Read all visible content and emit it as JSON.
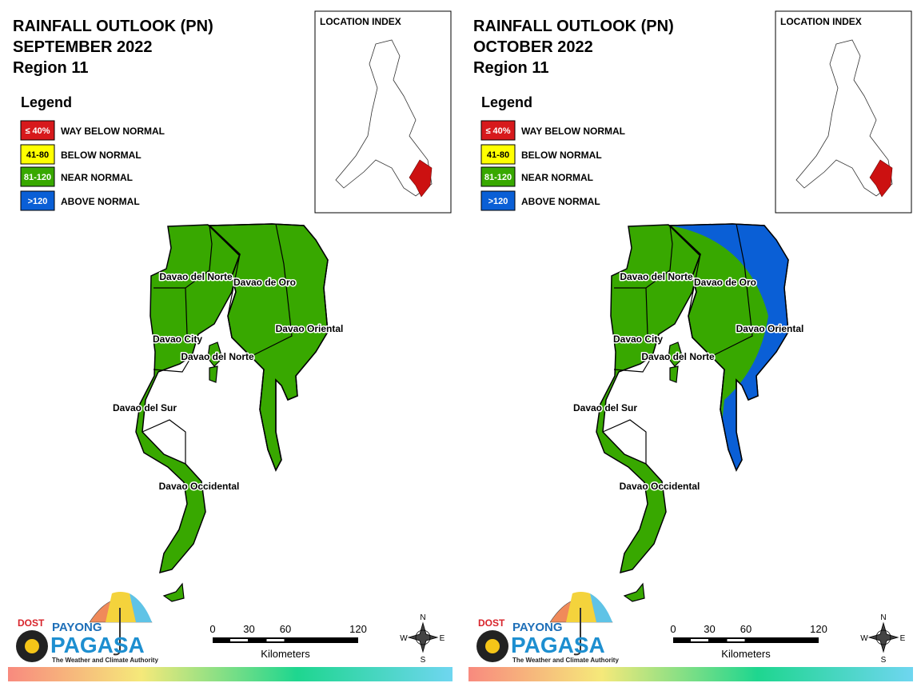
{
  "panels": [
    {
      "title": [
        "RAINFALL OUTLOOK (PN)",
        "SEPTEMBER 2022",
        "Region 11"
      ],
      "location_index": "LOCATION INDEX",
      "legend": {
        "title": "Legend",
        "items": [
          {
            "range": "≤ 40%",
            "label": "WAY BELOW NORMAL",
            "color": "#d7191c"
          },
          {
            "range": "41-80",
            "label": "BELOW NORMAL",
            "color": "#ffff00"
          },
          {
            "range": "81-120",
            "label": "NEAR NORMAL",
            "color": "#38a800"
          },
          {
            "range": ">120",
            "label": "ABOVE NORMAL",
            "color": "#0a5fd6"
          }
        ]
      },
      "provinces": [
        "Davao del Norte",
        "Davao de Oro",
        "Davao Oriental",
        "Davao City",
        "Davao del Norte",
        "Davao del Sur",
        "Davao Occidental"
      ],
      "scale": {
        "ticks": [
          0,
          30,
          60,
          120
        ],
        "unit": "Kilometers"
      },
      "compass": [
        "N",
        "E",
        "S",
        "W"
      ],
      "logo": {
        "agency": "DOST",
        "brand_top": "PAYONG",
        "brand": "PAGASA",
        "tagline": "The Weather and Climate Authority"
      }
    },
    {
      "title": [
        "RAINFALL OUTLOOK (PN)",
        "OCTOBER 2022",
        "Region 11"
      ],
      "location_index": "LOCATION INDEX",
      "legend": {
        "title": "Legend",
        "items": [
          {
            "range": "≤ 40%",
            "label": "WAY BELOW NORMAL",
            "color": "#d7191c"
          },
          {
            "range": "41-80",
            "label": "BELOW NORMAL",
            "color": "#ffff00"
          },
          {
            "range": "81-120",
            "label": "NEAR NORMAL",
            "color": "#38a800"
          },
          {
            "range": ">120",
            "label": "ABOVE NORMAL",
            "color": "#0a5fd6"
          }
        ]
      },
      "provinces": [
        "Davao del Norte",
        "Davao de Oro",
        "Davao Oriental",
        "Davao City",
        "Davao del Norte",
        "Davao del Sur",
        "Davao Occidental"
      ],
      "scale": {
        "ticks": [
          0,
          30,
          60,
          120
        ],
        "unit": "Kilometers"
      },
      "compass": [
        "N",
        "E",
        "S",
        "W"
      ],
      "logo": {
        "agency": "DOST",
        "brand_top": "PAYONG",
        "brand": "PAGASA",
        "tagline": "The Weather and Climate Authority"
      }
    }
  ]
}
